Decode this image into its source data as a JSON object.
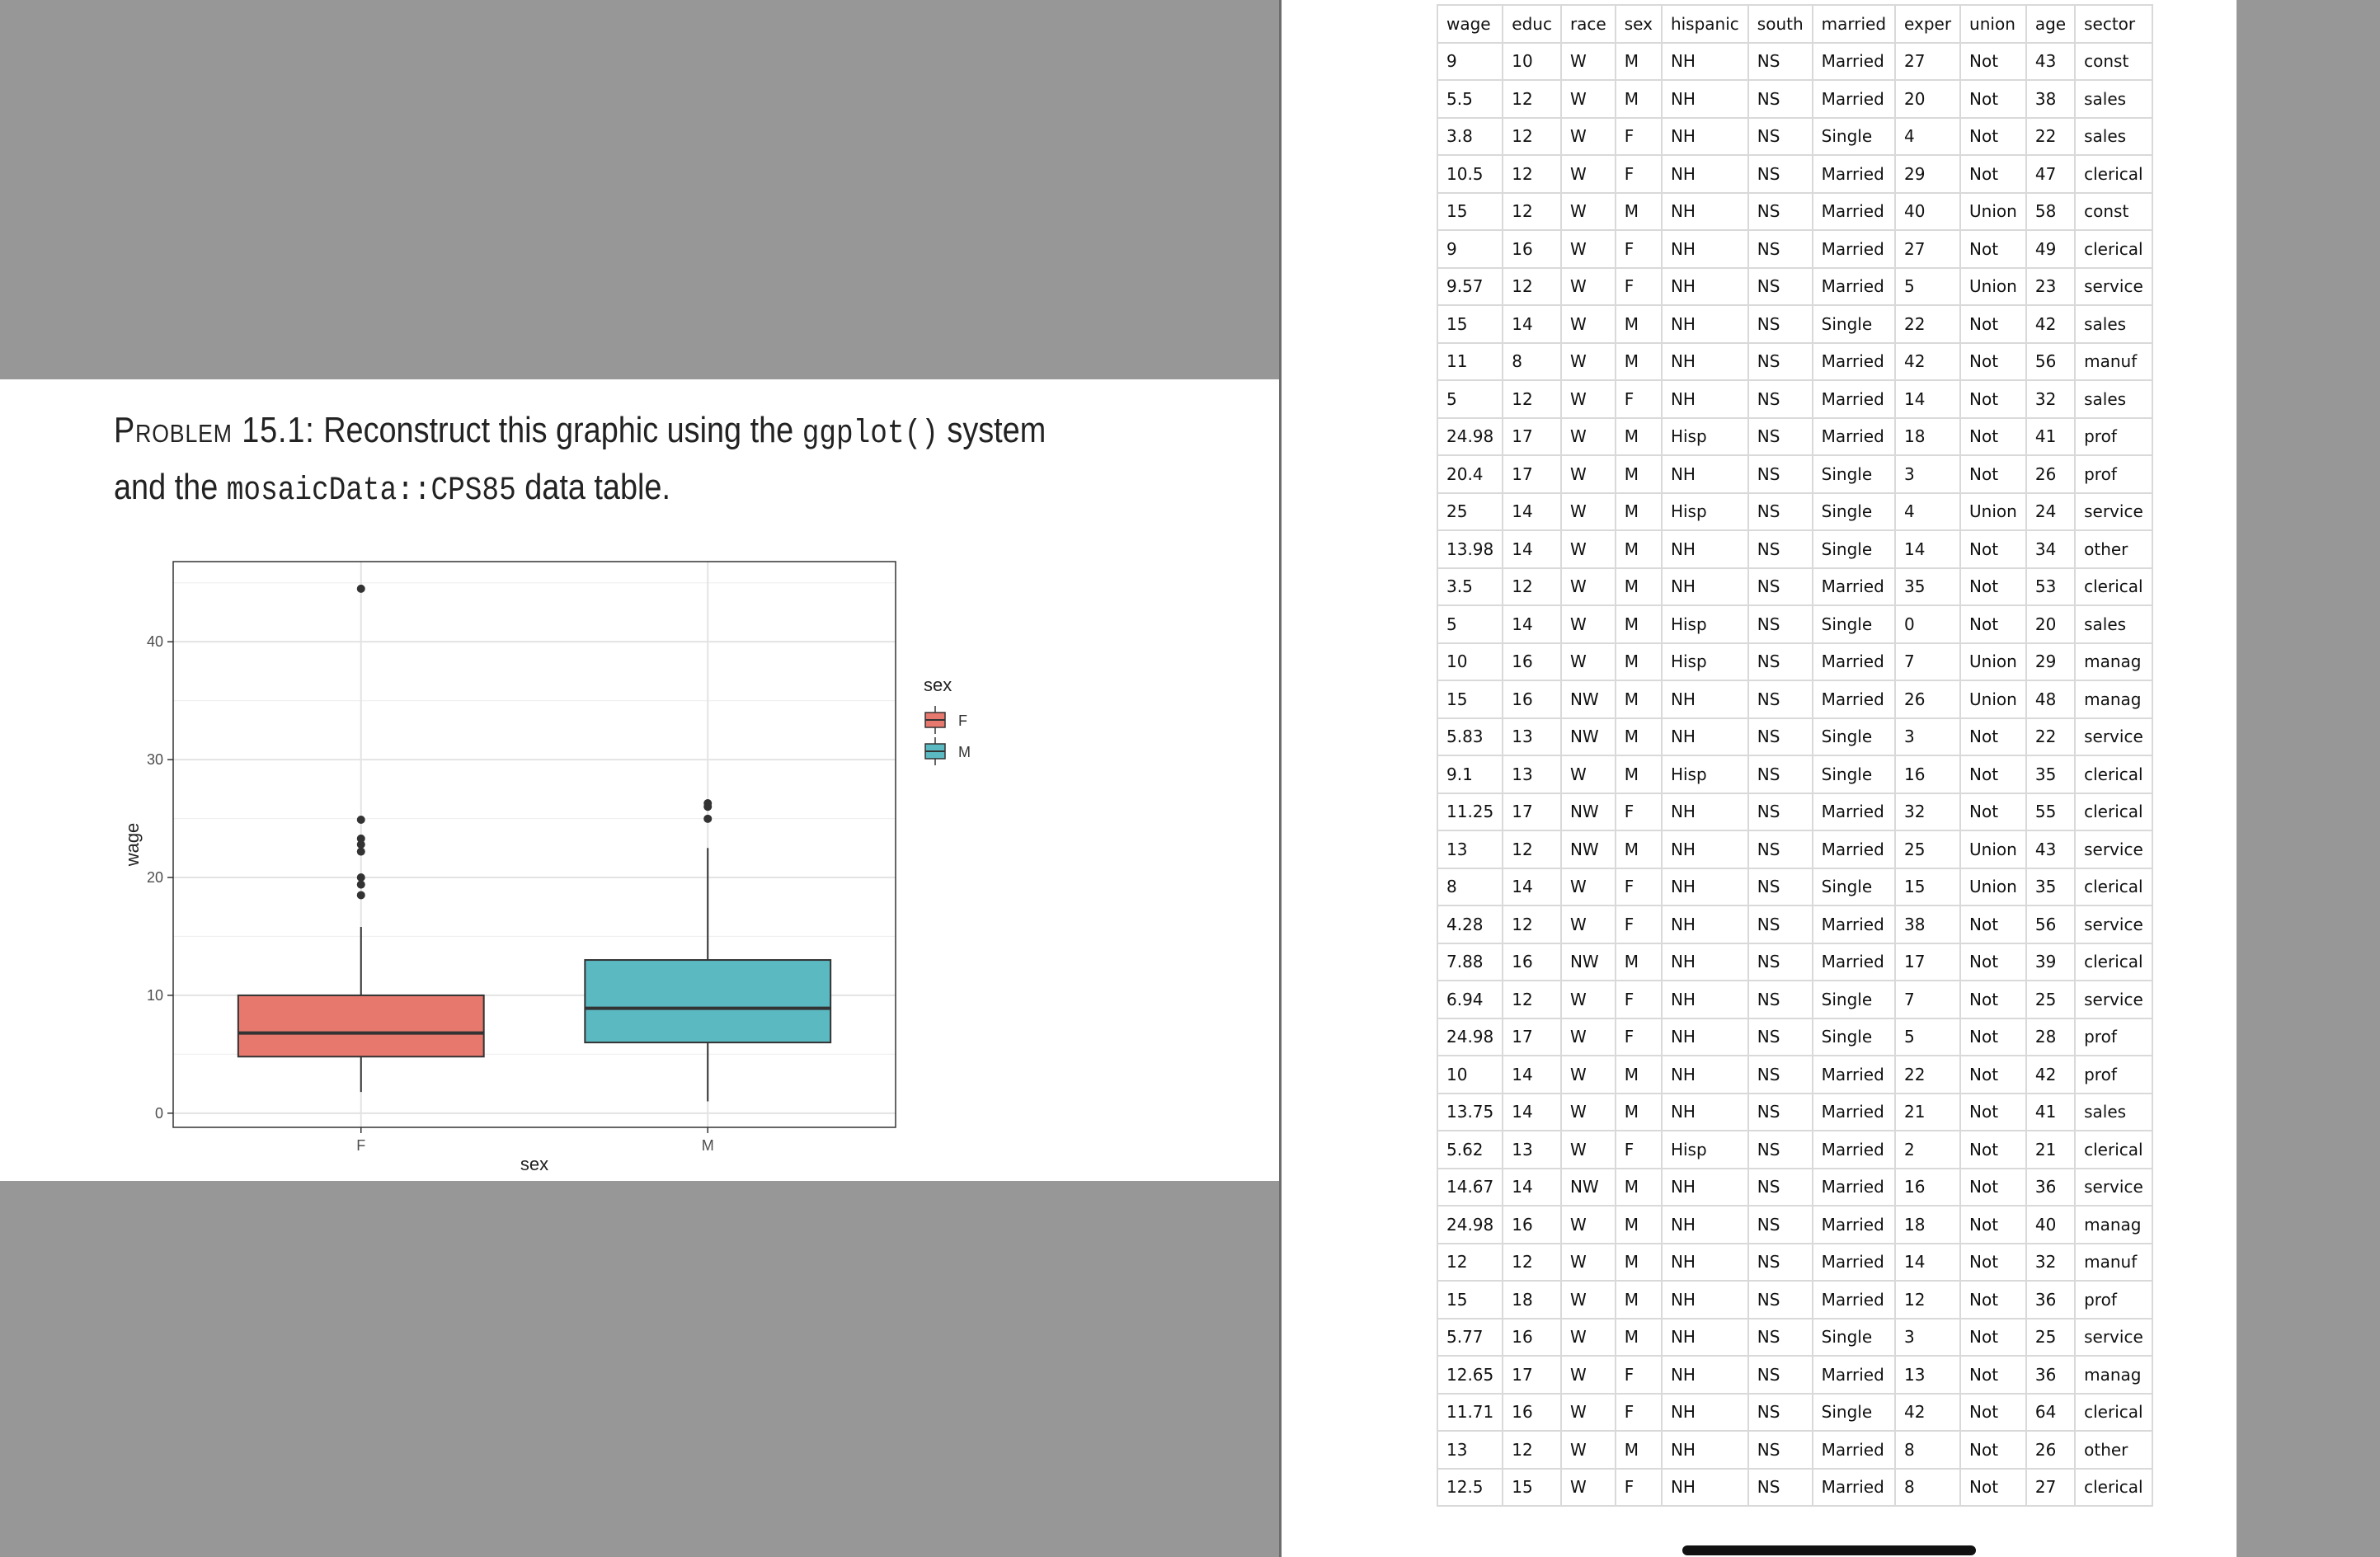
{
  "problem": {
    "lead": "Problem 15.1:",
    "text1": "Reconstruct this graphic using the",
    "code1": "ggplot()",
    "text2": "system and the",
    "code2": "mosaicData::CPS85",
    "text3": "data table."
  },
  "chart_data": {
    "type": "boxplot",
    "xlabel": "sex",
    "ylabel": "wage",
    "categories": [
      "F",
      "M"
    ],
    "ylim": [
      -1.2,
      46.8
    ],
    "yticks": [
      0,
      10,
      20,
      30,
      40
    ],
    "grid": true,
    "legend": {
      "title": "sex",
      "placement": "right",
      "entries": [
        "F",
        "M"
      ]
    },
    "colors": {
      "F": "#E6786E",
      "M": "#5BB9C2"
    },
    "boxes": [
      {
        "category": "F",
        "whisker_low": 1.8,
        "q1": 4.8,
        "median": 6.8,
        "q3": 10.0,
        "whisker_high": 15.8,
        "outliers": [
          18.5,
          19.4,
          20.0,
          22.2,
          22.8,
          23.3,
          24.9,
          44.5
        ]
      },
      {
        "category": "M",
        "whisker_low": 1.0,
        "q1": 6.0,
        "median": 8.9,
        "q3": 13.0,
        "whisker_high": 22.5,
        "outliers": [
          24.98,
          26.0,
          26.3
        ]
      }
    ]
  },
  "table": {
    "headers": [
      "wage",
      "educ",
      "race",
      "sex",
      "hispanic",
      "south",
      "married",
      "exper",
      "union",
      "age",
      "sector"
    ],
    "rows": [
      [
        "9",
        "10",
        "W",
        "M",
        "NH",
        "NS",
        "Married",
        "27",
        "Not",
        "43",
        "const"
      ],
      [
        "5.5",
        "12",
        "W",
        "M",
        "NH",
        "NS",
        "Married",
        "20",
        "Not",
        "38",
        "sales"
      ],
      [
        "3.8",
        "12",
        "W",
        "F",
        "NH",
        "NS",
        "Single",
        "4",
        "Not",
        "22",
        "sales"
      ],
      [
        "10.5",
        "12",
        "W",
        "F",
        "NH",
        "NS",
        "Married",
        "29",
        "Not",
        "47",
        "clerical"
      ],
      [
        "15",
        "12",
        "W",
        "M",
        "NH",
        "NS",
        "Married",
        "40",
        "Union",
        "58",
        "const"
      ],
      [
        "9",
        "16",
        "W",
        "F",
        "NH",
        "NS",
        "Married",
        "27",
        "Not",
        "49",
        "clerical"
      ],
      [
        "9.57",
        "12",
        "W",
        "F",
        "NH",
        "NS",
        "Married",
        "5",
        "Union",
        "23",
        "service"
      ],
      [
        "15",
        "14",
        "W",
        "M",
        "NH",
        "NS",
        "Single",
        "22",
        "Not",
        "42",
        "sales"
      ],
      [
        "11",
        "8",
        "W",
        "M",
        "NH",
        "NS",
        "Married",
        "42",
        "Not",
        "56",
        "manuf"
      ],
      [
        "5",
        "12",
        "W",
        "F",
        "NH",
        "NS",
        "Married",
        "14",
        "Not",
        "32",
        "sales"
      ],
      [
        "24.98",
        "17",
        "W",
        "M",
        "Hisp",
        "NS",
        "Married",
        "18",
        "Not",
        "41",
        "prof"
      ],
      [
        "20.4",
        "17",
        "W",
        "M",
        "NH",
        "NS",
        "Single",
        "3",
        "Not",
        "26",
        "prof"
      ],
      [
        "25",
        "14",
        "W",
        "M",
        "Hisp",
        "NS",
        "Single",
        "4",
        "Union",
        "24",
        "service"
      ],
      [
        "13.98",
        "14",
        "W",
        "M",
        "NH",
        "NS",
        "Single",
        "14",
        "Not",
        "34",
        "other"
      ],
      [
        "3.5",
        "12",
        "W",
        "M",
        "NH",
        "NS",
        "Married",
        "35",
        "Not",
        "53",
        "clerical"
      ],
      [
        "5",
        "14",
        "W",
        "M",
        "Hisp",
        "NS",
        "Single",
        "0",
        "Not",
        "20",
        "sales"
      ],
      [
        "10",
        "16",
        "W",
        "M",
        "Hisp",
        "NS",
        "Married",
        "7",
        "Union",
        "29",
        "manag"
      ],
      [
        "15",
        "16",
        "NW",
        "M",
        "NH",
        "NS",
        "Married",
        "26",
        "Union",
        "48",
        "manag"
      ],
      [
        "5.83",
        "13",
        "NW",
        "M",
        "NH",
        "NS",
        "Single",
        "3",
        "Not",
        "22",
        "service"
      ],
      [
        "9.1",
        "13",
        "W",
        "M",
        "Hisp",
        "NS",
        "Single",
        "16",
        "Not",
        "35",
        "clerical"
      ],
      [
        "11.25",
        "17",
        "NW",
        "F",
        "NH",
        "NS",
        "Married",
        "32",
        "Not",
        "55",
        "clerical"
      ],
      [
        "13",
        "12",
        "NW",
        "M",
        "NH",
        "NS",
        "Married",
        "25",
        "Union",
        "43",
        "service"
      ],
      [
        "8",
        "14",
        "W",
        "F",
        "NH",
        "NS",
        "Single",
        "15",
        "Union",
        "35",
        "clerical"
      ],
      [
        "4.28",
        "12",
        "W",
        "F",
        "NH",
        "NS",
        "Married",
        "38",
        "Not",
        "56",
        "service"
      ],
      [
        "7.88",
        "16",
        "NW",
        "M",
        "NH",
        "NS",
        "Married",
        "17",
        "Not",
        "39",
        "clerical"
      ],
      [
        "6.94",
        "12",
        "W",
        "F",
        "NH",
        "NS",
        "Single",
        "7",
        "Not",
        "25",
        "service"
      ],
      [
        "24.98",
        "17",
        "W",
        "F",
        "NH",
        "NS",
        "Single",
        "5",
        "Not",
        "28",
        "prof"
      ],
      [
        "10",
        "14",
        "W",
        "M",
        "NH",
        "NS",
        "Married",
        "22",
        "Not",
        "42",
        "prof"
      ],
      [
        "13.75",
        "14",
        "W",
        "M",
        "NH",
        "NS",
        "Married",
        "21",
        "Not",
        "41",
        "sales"
      ],
      [
        "5.62",
        "13",
        "W",
        "F",
        "Hisp",
        "NS",
        "Married",
        "2",
        "Not",
        "21",
        "clerical"
      ],
      [
        "14.67",
        "14",
        "NW",
        "M",
        "NH",
        "NS",
        "Married",
        "16",
        "Not",
        "36",
        "service"
      ],
      [
        "24.98",
        "16",
        "W",
        "M",
        "NH",
        "NS",
        "Married",
        "18",
        "Not",
        "40",
        "manag"
      ],
      [
        "12",
        "12",
        "W",
        "M",
        "NH",
        "NS",
        "Married",
        "14",
        "Not",
        "32",
        "manuf"
      ],
      [
        "15",
        "18",
        "W",
        "M",
        "NH",
        "NS",
        "Married",
        "12",
        "Not",
        "36",
        "prof"
      ],
      [
        "5.77",
        "16",
        "W",
        "M",
        "NH",
        "NS",
        "Single",
        "3",
        "Not",
        "25",
        "service"
      ],
      [
        "12.65",
        "17",
        "W",
        "F",
        "NH",
        "NS",
        "Married",
        "13",
        "Not",
        "36",
        "manag"
      ],
      [
        "11.71",
        "16",
        "W",
        "F",
        "NH",
        "NS",
        "Single",
        "42",
        "Not",
        "64",
        "clerical"
      ],
      [
        "13",
        "12",
        "W",
        "M",
        "NH",
        "NS",
        "Married",
        "8",
        "Not",
        "26",
        "other"
      ],
      [
        "12.5",
        "15",
        "W",
        "F",
        "NH",
        "NS",
        "Married",
        "8",
        "Not",
        "27",
        "clerical"
      ]
    ]
  }
}
